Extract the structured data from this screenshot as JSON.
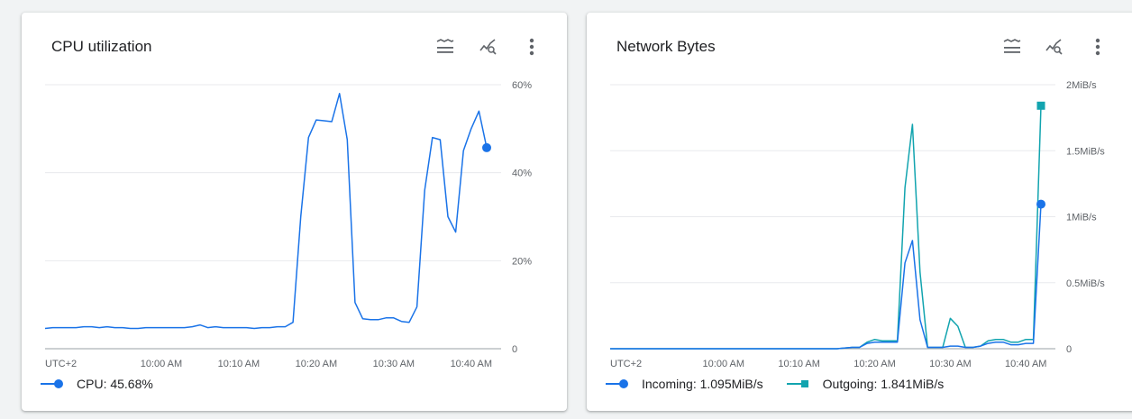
{
  "cards": [
    {
      "title": "CPU utilization",
      "legend": [
        {
          "name": "CPU",
          "value": "45.68%",
          "color": "#1a73e8",
          "marker": "circle"
        }
      ]
    },
    {
      "title": "Network Bytes",
      "legend": [
        {
          "name": "Incoming",
          "value": "1.095MiB/s",
          "color": "#1a73e8",
          "marker": "circle"
        },
        {
          "name": "Outgoing",
          "value": "1.841MiB/s",
          "color": "#12a4af",
          "marker": "square"
        }
      ]
    }
  ],
  "toolbar_icons": [
    "legend-toggle-icon",
    "explore-chart-icon",
    "more-vert-icon"
  ],
  "chart_data": [
    {
      "type": "line",
      "title": "CPU utilization",
      "timezone_label": "UTC+2",
      "x_tick_labels": [
        "10:00 AM",
        "10:10 AM",
        "10:20 AM",
        "10:30 AM",
        "10:40 AM"
      ],
      "x_tick_minutes": [
        600,
        610,
        620,
        630,
        640
      ],
      "ylim": [
        0,
        60
      ],
      "y_ticks": [
        0,
        20,
        40,
        60
      ],
      "y_tick_labels": [
        "0",
        "20%",
        "40%",
        "60%"
      ],
      "y_axis_side": "right",
      "grid": true,
      "legend_position": "bottom-left",
      "series": [
        {
          "name": "CPU",
          "color": "#1a73e8",
          "end_marker": "circle",
          "x": [
            585,
            586,
            587,
            588,
            589,
            590,
            591,
            592,
            593,
            594,
            595,
            596,
            597,
            598,
            599,
            600,
            601,
            602,
            603,
            604,
            605,
            606,
            607,
            608,
            609,
            610,
            611,
            612,
            613,
            614,
            615,
            616,
            617,
            618,
            619,
            620,
            621,
            622,
            623,
            624,
            625,
            626,
            627,
            628,
            629,
            630,
            631,
            632,
            633,
            634,
            635,
            636,
            637,
            638,
            639,
            640,
            641,
            642
          ],
          "values": [
            4.6,
            4.8,
            4.8,
            4.8,
            4.8,
            5.0,
            5.0,
            4.8,
            5.0,
            4.8,
            4.8,
            4.6,
            4.6,
            4.8,
            4.8,
            4.8,
            4.8,
            4.8,
            4.8,
            5.0,
            5.4,
            4.8,
            5.0,
            4.8,
            4.8,
            4.8,
            4.8,
            4.6,
            4.8,
            4.8,
            5.0,
            5.0,
            6.0,
            30,
            48,
            52,
            51.8,
            51.6,
            58,
            47.5,
            10.5,
            6.8,
            6.6,
            6.6,
            7.0,
            7.0,
            6.2,
            6.0,
            9.5,
            36,
            48,
            47.5,
            30,
            26.5,
            45,
            50,
            54,
            45.68
          ]
        }
      ]
    },
    {
      "type": "line",
      "title": "Network Bytes",
      "timezone_label": "UTC+2",
      "x_tick_labels": [
        "10:00 AM",
        "10:10 AM",
        "10:20 AM",
        "10:30 AM",
        "10:40 AM"
      ],
      "x_tick_minutes": [
        600,
        610,
        620,
        630,
        640
      ],
      "ylim": [
        0,
        2
      ],
      "y_ticks": [
        0,
        0.5,
        1,
        1.5,
        2
      ],
      "y_tick_labels": [
        "0",
        "0.5MiB/s",
        "1MiB/s",
        "1.5MiB/s",
        "2MiB/s"
      ],
      "y_axis_side": "right",
      "grid": true,
      "legend_position": "bottom-left",
      "series": [
        {
          "name": "Incoming",
          "color": "#1a73e8",
          "end_marker": "circle",
          "x": [
            585,
            600,
            610,
            613,
            615,
            617,
            618,
            619,
            620,
            621,
            622,
            623,
            624,
            625,
            626,
            627,
            628,
            629,
            630,
            631,
            632,
            633,
            634,
            635,
            636,
            637,
            638,
            639,
            640,
            641,
            642
          ],
          "values": [
            0,
            0,
            0,
            0,
            0,
            0.01,
            0.01,
            0.04,
            0.05,
            0.05,
            0.05,
            0.05,
            0.65,
            0.82,
            0.22,
            0.01,
            0.01,
            0.01,
            0.02,
            0.02,
            0.01,
            0.01,
            0.02,
            0.04,
            0.05,
            0.05,
            0.03,
            0.03,
            0.04,
            0.04,
            1.095
          ]
        },
        {
          "name": "Outgoing",
          "color": "#12a4af",
          "end_marker": "square",
          "x": [
            585,
            600,
            610,
            613,
            615,
            617,
            618,
            619,
            620,
            621,
            622,
            623,
            624,
            625,
            626,
            627,
            628,
            629,
            630,
            631,
            632,
            633,
            634,
            635,
            636,
            637,
            638,
            639,
            640,
            641,
            642
          ],
          "values": [
            0,
            0,
            0,
            0,
            0,
            0.01,
            0.01,
            0.05,
            0.07,
            0.06,
            0.06,
            0.06,
            1.22,
            1.7,
            0.58,
            0.01,
            0.01,
            0.01,
            0.23,
            0.17,
            0.01,
            0.01,
            0.02,
            0.06,
            0.07,
            0.07,
            0.05,
            0.05,
            0.07,
            0.07,
            1.841
          ]
        }
      ]
    }
  ]
}
